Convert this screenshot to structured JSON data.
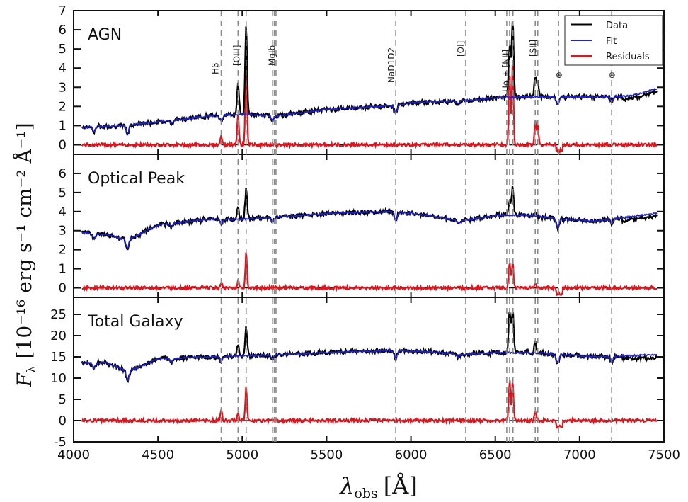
{
  "chart_data": {
    "type": "line",
    "xlabel_main": "λ",
    "xlabel_sub": "obs",
    "xlabel_unit": "[Å]",
    "ylabel_main": "F",
    "ylabel_sub": "λ",
    "ylabel_unit": "[10⁻¹⁶ erg s⁻¹ cm⁻² Å⁻¹]",
    "xlim": [
      4000,
      7500
    ],
    "x_ticks": [
      4000,
      4500,
      5000,
      5500,
      6000,
      6500,
      7000,
      7500
    ],
    "legend": {
      "placement": "top-right",
      "entries": [
        {
          "label": "Data",
          "color": "#000000"
        },
        {
          "label": "Fit",
          "color": "#1f1fd6"
        },
        {
          "label": "Residuals",
          "color": "#e0141c"
        }
      ]
    },
    "line_markers": [
      {
        "label": "Hβ",
        "x": [
          4875
        ]
      },
      {
        "label": "[OIII]",
        "x": [
          4975,
          5023
        ]
      },
      {
        "label": "MgIb",
        "x": [
          5180,
          5190,
          5200
        ]
      },
      {
        "label": "NaD1D2",
        "x": [
          5910
        ]
      },
      {
        "label": "[OI]",
        "x": [
          6325
        ]
      },
      {
        "label": "Hα + [NII]",
        "x": [
          6568,
          6585,
          6605
        ]
      },
      {
        "label": "[SII]",
        "x": [
          6737,
          6752
        ]
      },
      {
        "label": "⊕",
        "x": [
          6875
        ]
      },
      {
        "label": "⊕",
        "x": [
          7190
        ]
      }
    ],
    "panels": [
      {
        "title": "AGN",
        "ylim": [
          -0.5,
          7
        ],
        "y_ticks": [
          0,
          1,
          2,
          3,
          4,
          5,
          6,
          7
        ],
        "continuum_x": [
          4000,
          4300,
          4500,
          4800,
          5000,
          5200,
          5500,
          5900,
          6000,
          6300,
          6500,
          6700,
          6900,
          7100,
          7300,
          7450
        ],
        "continuum_y": [
          0.9,
          1.0,
          1.2,
          1.5,
          1.6,
          1.5,
          1.85,
          2.05,
          2.2,
          2.3,
          2.45,
          2.5,
          2.5,
          2.5,
          2.55,
          2.9
        ],
        "data_peaks": [
          [
            4975,
            3.2
          ],
          [
            5023,
            6.2
          ],
          [
            6585,
            5.2
          ],
          [
            6603,
            6.5
          ],
          [
            6737,
            3.5
          ],
          [
            6752,
            3.3
          ]
        ],
        "residual_peaks": [
          [
            4875,
            0.5
          ],
          [
            4975,
            1.6
          ],
          [
            5023,
            4.8
          ],
          [
            6585,
            3.7
          ],
          [
            6603,
            4.2
          ],
          [
            6737,
            1.2
          ],
          [
            6752,
            1.0
          ]
        ]
      },
      {
        "title": "Optical Peak",
        "ylim": [
          -0.5,
          7
        ],
        "y_ticks": [
          0,
          1,
          2,
          3,
          4,
          5,
          6
        ],
        "continuum_x": [
          4000,
          4200,
          4320,
          4500,
          4800,
          5000,
          5200,
          5500,
          5900,
          6100,
          6300,
          6500,
          6700,
          6900,
          7100,
          7450
        ],
        "continuum_y": [
          2.9,
          2.8,
          2.5,
          3.3,
          3.6,
          3.6,
          3.7,
          3.9,
          4.0,
          3.8,
          3.5,
          3.8,
          3.8,
          3.6,
          3.5,
          3.9
        ],
        "data_peaks": [
          [
            4975,
            4.2
          ],
          [
            5023,
            5.2
          ],
          [
            6585,
            4.6
          ],
          [
            6603,
            5.3
          ],
          [
            6737,
            4.0
          ]
        ],
        "residual_peaks": [
          [
            4875,
            0.3
          ],
          [
            4975,
            0.4
          ],
          [
            5023,
            1.8
          ],
          [
            6585,
            1.4
          ],
          [
            6603,
            1.4
          ],
          [
            6737,
            0.3
          ]
        ]
      },
      {
        "title": "Total Galaxy",
        "ylim": [
          -5,
          29
        ],
        "y_ticks": [
          -5,
          0,
          5,
          10,
          15,
          20,
          25
        ],
        "continuum_x": [
          4000,
          4200,
          4320,
          4500,
          4800,
          5000,
          5200,
          5500,
          5900,
          6100,
          6300,
          6500,
          6700,
          6900,
          7100,
          7450
        ],
        "continuum_y": [
          13.5,
          13.6,
          11.5,
          14.5,
          15.0,
          15.2,
          15.5,
          16.0,
          16.5,
          16.2,
          15.5,
          16.0,
          16.0,
          15.5,
          15.0,
          15.5
        ],
        "data_peaks": [
          [
            4975,
            18
          ],
          [
            5023,
            22
          ],
          [
            6585,
            26
          ],
          [
            6603,
            26
          ],
          [
            6737,
            18.5
          ]
        ],
        "residual_peaks": [
          [
            4875,
            2.5
          ],
          [
            4975,
            2.0
          ],
          [
            5023,
            8
          ],
          [
            6585,
            9.5
          ],
          [
            6603,
            9.5
          ],
          [
            6737,
            2.5
          ]
        ]
      }
    ]
  }
}
